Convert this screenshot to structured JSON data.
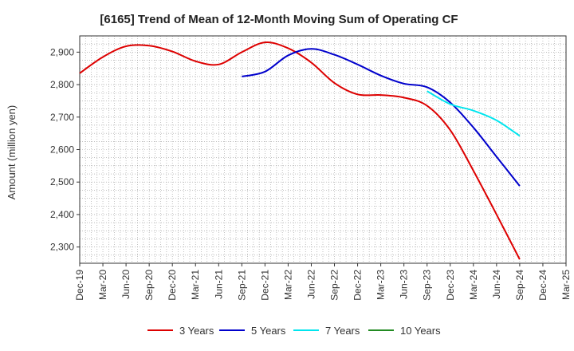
{
  "chart_data": {
    "type": "line",
    "title": "[6165]  Trend of Mean of 12-Month Moving Sum of Operating CF",
    "xlabel": "",
    "ylabel": "Amount (million yen)",
    "ylim": [
      2250,
      2950
    ],
    "yticks": [
      2300,
      2400,
      2500,
      2600,
      2700,
      2800,
      2900
    ],
    "ytick_labels": [
      "2,300",
      "2,400",
      "2,500",
      "2,600",
      "2,700",
      "2,800",
      "2,900"
    ],
    "categories": [
      "Dec-19",
      "Mar-20",
      "Jun-20",
      "Sep-20",
      "Dec-20",
      "Mar-21",
      "Jun-21",
      "Sep-21",
      "Dec-21",
      "Mar-22",
      "Jun-22",
      "Sep-22",
      "Dec-22",
      "Mar-23",
      "Jun-23",
      "Sep-23",
      "Dec-23",
      "Mar-24",
      "Jun-24",
      "Sep-24",
      "Dec-24",
      "Mar-25"
    ],
    "grid": true,
    "legend_position": "bottom",
    "series": [
      {
        "name": "3 Years",
        "color": "#dd0000",
        "values": [
          2835,
          2885,
          2918,
          2920,
          2902,
          2872,
          2862,
          2900,
          2930,
          2912,
          2868,
          2805,
          2770,
          2768,
          2760,
          2735,
          2660,
          2535,
          2400,
          2262,
          null,
          null
        ]
      },
      {
        "name": "5 Years",
        "color": "#0000cc",
        "values": [
          null,
          null,
          null,
          null,
          null,
          null,
          null,
          2825,
          2840,
          2890,
          2910,
          2892,
          2862,
          2828,
          2803,
          2792,
          2745,
          2668,
          2578,
          2488,
          null,
          null
        ]
      },
      {
        "name": "7 Years",
        "color": "#00e5ee",
        "values": [
          null,
          null,
          null,
          null,
          null,
          null,
          null,
          null,
          null,
          null,
          null,
          null,
          null,
          null,
          null,
          2780,
          2740,
          2720,
          2690,
          2642,
          null,
          null
        ]
      },
      {
        "name": "10 Years",
        "color": "#228b22",
        "values": [
          null,
          null,
          null,
          null,
          null,
          null,
          null,
          null,
          null,
          null,
          null,
          null,
          null,
          null,
          null,
          null,
          null,
          null,
          null,
          null,
          null,
          null
        ]
      }
    ]
  }
}
